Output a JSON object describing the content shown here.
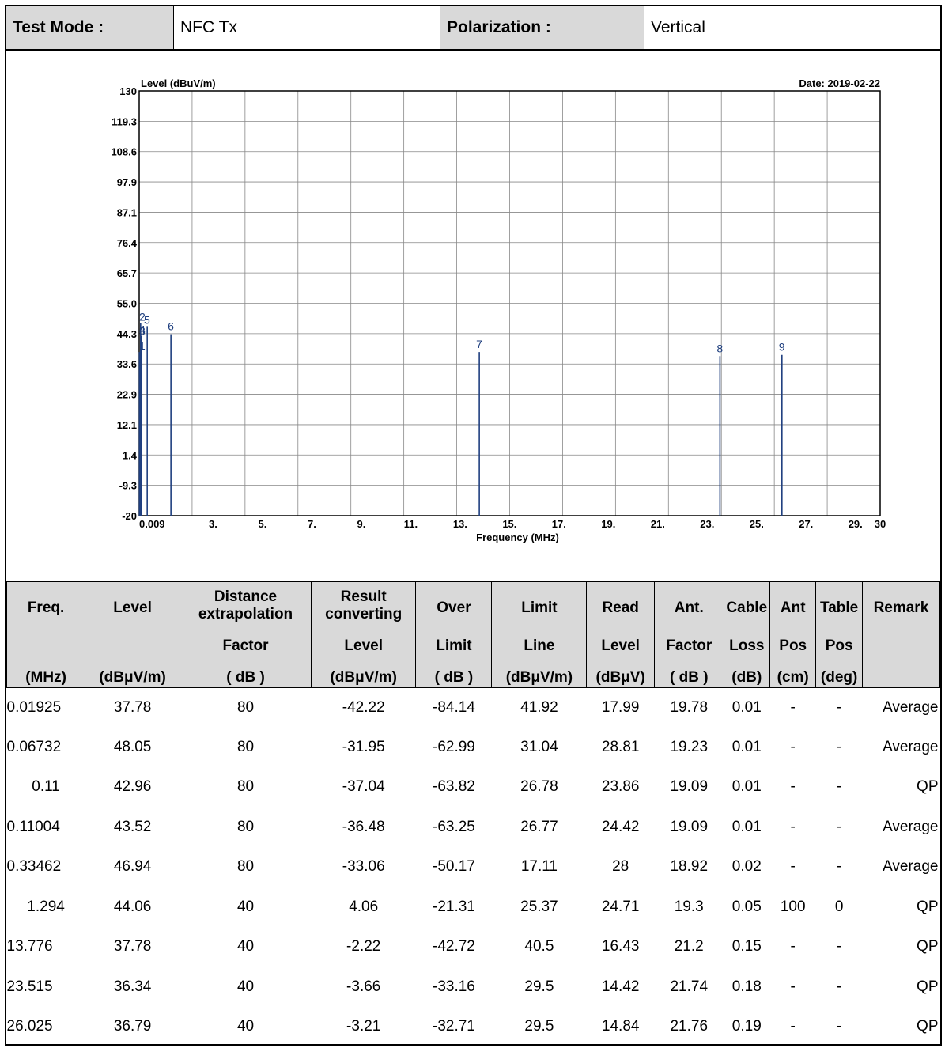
{
  "header": {
    "test_mode_label": "Test Mode :",
    "test_mode_value": "NFC Tx",
    "polarization_label": "Polarization :",
    "polarization_value": "Vertical"
  },
  "chart_data": {
    "type": "bar",
    "ylabel": "Level (dBuV/m)",
    "xlabel": "Frequency (MHz)",
    "date": "Date: 2019-02-22",
    "ylim": [
      -20,
      130
    ],
    "xlim": [
      0.009,
      30
    ],
    "y_ticks": [
      "130",
      "119.3",
      "108.6",
      "97.9",
      "87.1",
      "76.4",
      "65.7",
      "55.0",
      "44.3",
      "33.6",
      "22.9",
      "12.1",
      "1.4",
      "-9.3",
      "-20"
    ],
    "x_ticks": [
      {
        "v": 0.009,
        "t": "0.009"
      },
      {
        "v": 3,
        "t": "3."
      },
      {
        "v": 5,
        "t": "5."
      },
      {
        "v": 7,
        "t": "7."
      },
      {
        "v": 9,
        "t": "9."
      },
      {
        "v": 11,
        "t": "11."
      },
      {
        "v": 13,
        "t": "13."
      },
      {
        "v": 15,
        "t": "15."
      },
      {
        "v": 17,
        "t": "17."
      },
      {
        "v": 19,
        "t": "19."
      },
      {
        "v": 21,
        "t": "21."
      },
      {
        "v": 23,
        "t": "23."
      },
      {
        "v": 25,
        "t": "25."
      },
      {
        "v": 27,
        "t": "27."
      },
      {
        "v": 29,
        "t": "29."
      },
      {
        "v": 30,
        "t": "30"
      }
    ],
    "markers": [
      {
        "label": "1",
        "x": 0.01925,
        "y": 37.78
      },
      {
        "label": "2",
        "x": 0.06732,
        "y": 48.05
      },
      {
        "label": "3",
        "x": 0.11,
        "y": 42.96
      },
      {
        "label": "4",
        "x": 0.11004,
        "y": 43.52
      },
      {
        "label": "5",
        "x": 0.33462,
        "y": 46.94
      },
      {
        "label": "6",
        "x": 1.294,
        "y": 44.06
      },
      {
        "label": "7",
        "x": 13.776,
        "y": 37.78
      },
      {
        "label": "8",
        "x": 23.515,
        "y": 36.34
      },
      {
        "label": "9",
        "x": 26.025,
        "y": 36.79
      }
    ],
    "grid": true
  },
  "table": {
    "headers": [
      {
        "t1": "Freq.",
        "t2": "",
        "t3": "(MHz)"
      },
      {
        "t1": "Level",
        "t2": "",
        "t3": "(dBμV/m)"
      },
      {
        "t1": "Distance extrapolation",
        "t2": "Factor",
        "t3": "( dB )"
      },
      {
        "t1": "Result converting",
        "t2": "Level",
        "t3": "(dBμV/m)"
      },
      {
        "t1": "Over",
        "t2": "Limit",
        "t3": "( dB )"
      },
      {
        "t1": "Limit",
        "t2": "Line",
        "t3": "(dBμV/m)"
      },
      {
        "t1": "Read",
        "t2": "Level",
        "t3": "(dBμV)"
      },
      {
        "t1": "Ant.",
        "t2": "Factor",
        "t3": "( dB )"
      },
      {
        "t1": "Cable",
        "t2": "Loss",
        "t3": "(dB)"
      },
      {
        "t1": "Ant",
        "t2": "Pos",
        "t3": "(cm)"
      },
      {
        "t1": "Table",
        "t2": "Pos",
        "t3": "(deg)"
      },
      {
        "t1": "Remark",
        "t2": "",
        "t3": ""
      }
    ],
    "rows": [
      [
        "0.01925",
        "37.78",
        "80",
        "-42.22",
        "-84.14",
        "41.92",
        "17.99",
        "19.78",
        "0.01",
        "-",
        "-",
        "Average"
      ],
      [
        "0.06732",
        "48.05",
        "80",
        "-31.95",
        "-62.99",
        "31.04",
        "28.81",
        "19.23",
        "0.01",
        "-",
        "-",
        "Average"
      ],
      [
        "0.11",
        "42.96",
        "80",
        "-37.04",
        "-63.82",
        "26.78",
        "23.86",
        "19.09",
        "0.01",
        "-",
        "-",
        "QP"
      ],
      [
        "0.11004",
        "43.52",
        "80",
        "-36.48",
        "-63.25",
        "26.77",
        "24.42",
        "19.09",
        "0.01",
        "-",
        "-",
        "Average"
      ],
      [
        "0.33462",
        "46.94",
        "80",
        "-33.06",
        "-50.17",
        "17.11",
        "28",
        "18.92",
        "0.02",
        "-",
        "-",
        "Average"
      ],
      [
        "1.294",
        "44.06",
        "40",
        "4.06",
        "-21.31",
        "25.37",
        "24.71",
        "19.3",
        "0.05",
        "100",
        "0",
        "QP"
      ],
      [
        "13.776",
        "37.78",
        "40",
        "-2.22",
        "-42.72",
        "40.5",
        "16.43",
        "21.2",
        "0.15",
        "-",
        "-",
        "QP"
      ],
      [
        "23.515",
        "36.34",
        "40",
        "-3.66",
        "-33.16",
        "29.5",
        "14.42",
        "21.74",
        "0.18",
        "-",
        "-",
        "QP"
      ],
      [
        "26.025",
        "36.79",
        "40",
        "-3.21",
        "-32.71",
        "29.5",
        "14.84",
        "21.76",
        "0.19",
        "-",
        "-",
        "QP"
      ]
    ]
  }
}
